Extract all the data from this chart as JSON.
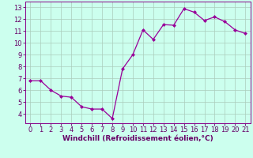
{
  "x": [
    0,
    1,
    2,
    3,
    4,
    5,
    6,
    7,
    8,
    9,
    10,
    11,
    12,
    13,
    14,
    15,
    16,
    17,
    18,
    19,
    20,
    21
  ],
  "y": [
    6.8,
    6.8,
    6.0,
    5.5,
    5.4,
    4.6,
    4.4,
    4.4,
    3.6,
    7.8,
    9.0,
    11.1,
    10.3,
    11.55,
    11.5,
    12.9,
    12.6,
    11.9,
    12.2,
    11.8,
    11.1,
    10.8
  ],
  "line_color": "#990099",
  "marker": "D",
  "marker_size": 2,
  "bg_color": "#ccffee",
  "grid_color": "#aaccbb",
  "xlabel": "Windchill (Refroidissement éolien,°C)",
  "xlabel_color": "#660066",
  "tick_color": "#660066",
  "spine_color": "#880088",
  "ylim": [
    3.2,
    13.5
  ],
  "xlim": [
    -0.5,
    21.5
  ],
  "yticks": [
    4,
    5,
    6,
    7,
    8,
    9,
    10,
    11,
    12,
    13
  ],
  "xticks": [
    0,
    1,
    2,
    3,
    4,
    5,
    6,
    7,
    8,
    9,
    10,
    11,
    12,
    13,
    14,
    15,
    16,
    17,
    18,
    19,
    20,
    21
  ],
  "tick_fontsize": 6,
  "xlabel_fontsize": 6.5
}
